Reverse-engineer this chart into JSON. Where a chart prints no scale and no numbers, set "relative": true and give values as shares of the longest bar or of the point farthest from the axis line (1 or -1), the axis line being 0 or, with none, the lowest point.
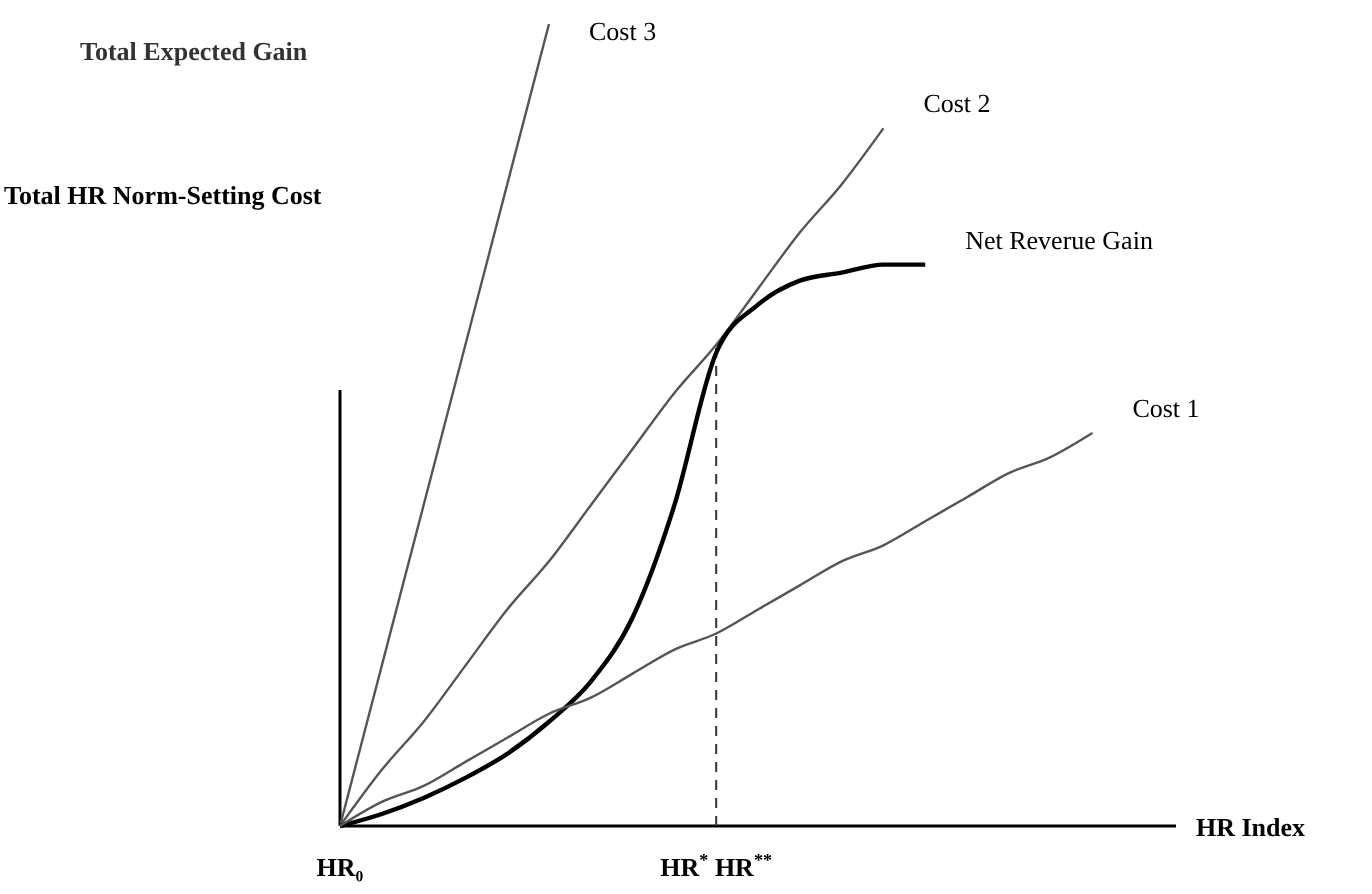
{
  "chart_data": {
    "type": "line",
    "title": "Total Expected Gain",
    "ylabel": "Total HR Norm-Setting Cost",
    "xlabel": "HR Index",
    "relative": true,
    "legend": false,
    "categories": [
      "HR₀",
      null,
      null,
      null,
      null,
      null,
      null,
      null,
      null,
      "HR$^{*}$ HR$^{**}$",
      null,
      null,
      null,
      null,
      null,
      null,
      null,
      null,
      null,
      null,
      null
    ],
    "ref_lines": [
      {
        "axis": "x",
        "value": "HR$^{*}$ HR$^{**}$",
        "line_style": "dashed",
        "color": "#333333"
      }
    ],
    "series": [
      {
        "name": "Cost 3",
        "color": "#555555",
        "values": [
          0,
          0.2,
          0.4,
          0.6,
          0.8,
          1,
          null,
          null,
          null,
          null,
          null,
          null,
          null,
          null,
          null,
          null,
          null,
          null,
          null,
          null,
          null
        ]
      },
      {
        "name": "Cost 2",
        "color": "#555555",
        "values": [
          0,
          0.07,
          0.13,
          0.2,
          0.27,
          0.33,
          0.4,
          0.47,
          0.54,
          0.6,
          0.67,
          0.74,
          0.8,
          0.87,
          null,
          null,
          null,
          null,
          null,
          null,
          null
        ]
      },
      {
        "name": "Net Reverue Gain",
        "color": "#000000",
        "values": [
          0,
          0.015,
          0.035,
          0.06,
          0.09,
          0.13,
          0.18,
          0.26,
          0.4,
          0.59,
          0.65,
          0.68,
          0.69,
          0.7,
          0.7,
          null,
          null,
          null,
          null,
          null,
          null
        ]
      },
      {
        "name": "Cost 1",
        "color": "#555555",
        "values": [
          0,
          0.03,
          0.05,
          0.08,
          0.11,
          0.14,
          0.16,
          0.19,
          0.22,
          0.24,
          0.27,
          0.3,
          0.33,
          0.35,
          0.38,
          0.41,
          0.44,
          0.46,
          0.49,
          null,
          null
        ]
      }
    ]
  }
}
